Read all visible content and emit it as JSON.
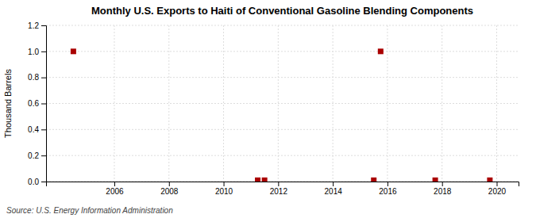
{
  "chart_data": {
    "type": "scatter",
    "title": "Monthly U.S. Exports to Haiti of Conventional Gasoline Blending Components",
    "ylabel": "Thousand Barrels",
    "annotations": [
      "Source: U.S. Energy Information Administration"
    ],
    "x": [
      2004.5,
      2011.25,
      2011.5,
      2015.5,
      2015.75,
      2017.75,
      2019.75
    ],
    "values": [
      1.0,
      0.01,
      0.01,
      0.01,
      1.0,
      0.01,
      0.01
    ],
    "color": "#aa0000",
    "marker": "square",
    "xlim": [
      2003.5,
      2020.8
    ],
    "ylim": [
      0.0,
      1.2
    ],
    "xticks": [
      2006,
      2008,
      2010,
      2012,
      2014,
      2016,
      2018,
      2020
    ],
    "yticks": [
      {
        "value": 0.0,
        "label": "0.0"
      },
      0.2,
      0.4,
      0.6,
      0.8,
      {
        "value": 1.0,
        "label": "1.0"
      },
      1.2
    ],
    "grid": true
  }
}
